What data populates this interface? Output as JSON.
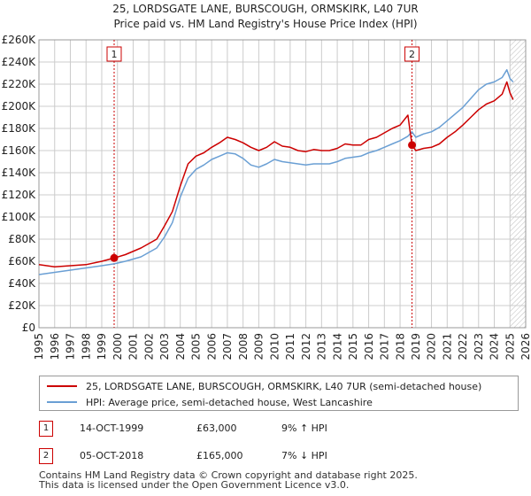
{
  "chart_data": {
    "type": "line",
    "title_line1": "25, LORDSGATE LANE, BURSCOUGH, ORMSKIRK, L40 7UR",
    "title_line2": "Price paid vs. HM Land Registry's House Price Index (HPI)",
    "ylim": [
      0,
      260000
    ],
    "xlim": [
      1995,
      2026
    ],
    "y_ticks": [
      {
        "value": 0,
        "label": "£0"
      },
      {
        "value": 20000,
        "label": "£20K"
      },
      {
        "value": 40000,
        "label": "£40K"
      },
      {
        "value": 60000,
        "label": "£60K"
      },
      {
        "value": 80000,
        "label": "£80K"
      },
      {
        "value": 100000,
        "label": "£100K"
      },
      {
        "value": 120000,
        "label": "£120K"
      },
      {
        "value": 140000,
        "label": "£140K"
      },
      {
        "value": 160000,
        "label": "£160K"
      },
      {
        "value": 180000,
        "label": "£180K"
      },
      {
        "value": 200000,
        "label": "£200K"
      },
      {
        "value": 220000,
        "label": "£220K"
      },
      {
        "value": 240000,
        "label": "£240K"
      },
      {
        "value": 260000,
        "label": "£260K"
      }
    ],
    "x_ticks": [
      "1995",
      "1996",
      "1997",
      "1998",
      "1999",
      "2000",
      "2001",
      "2002",
      "2003",
      "2004",
      "2005",
      "2006",
      "2007",
      "2008",
      "2009",
      "2010",
      "2011",
      "2012",
      "2013",
      "2014",
      "2015",
      "2016",
      "2017",
      "2018",
      "2019",
      "2020",
      "2021",
      "2022",
      "2023",
      "2024",
      "2025",
      "2026"
    ],
    "series": [
      {
        "name": "25, LORDSGATE LANE, BURSCOUGH, ORMSKIRK, L40 7UR (semi-detached house)",
        "color": "#cc0000",
        "x": [
          1995.0,
          1996.0,
          1997.0,
          1998.0,
          1999.0,
          1999.79,
          2000.5,
          2001.5,
          2002.5,
          2003.0,
          2003.5,
          2004.0,
          2004.5,
          2005.0,
          2005.5,
          2006.0,
          2006.5,
          2007.0,
          2007.5,
          2008.0,
          2008.5,
          2009.0,
          2009.5,
          2010.0,
          2010.5,
          2011.0,
          2011.5,
          2012.0,
          2012.5,
          2013.0,
          2013.5,
          2014.0,
          2014.5,
          2015.0,
          2015.5,
          2016.0,
          2016.5,
          2017.0,
          2017.5,
          2018.0,
          2018.5,
          2018.76,
          2019.0,
          2019.5,
          2020.0,
          2020.5,
          2021.0,
          2021.5,
          2022.0,
          2022.5,
          2023.0,
          2023.5,
          2024.0,
          2024.5,
          2024.8,
          2025.0,
          2025.2
        ],
        "values": [
          57000,
          55000,
          56000,
          57000,
          60000,
          63000,
          66000,
          72000,
          80000,
          92000,
          105000,
          128000,
          148000,
          155000,
          158000,
          163000,
          167000,
          172000,
          170000,
          167000,
          163000,
          160000,
          163000,
          168000,
          164000,
          163000,
          160000,
          159000,
          161000,
          160000,
          160000,
          162000,
          166000,
          165000,
          165000,
          170000,
          172000,
          176000,
          180000,
          183000,
          192000,
          165000,
          160000,
          162000,
          163000,
          166000,
          172000,
          177000,
          183000,
          190000,
          197000,
          202000,
          205000,
          211000,
          222000,
          212000,
          206000
        ]
      },
      {
        "name": "HPI: Average price, semi-detached house, West Lancashire",
        "color": "#6a9fd4",
        "x": [
          1995.0,
          1996.0,
          1997.0,
          1998.0,
          1999.0,
          1999.79,
          2000.5,
          2001.5,
          2002.5,
          2003.0,
          2003.5,
          2004.0,
          2004.5,
          2005.0,
          2005.5,
          2006.0,
          2006.5,
          2007.0,
          2007.5,
          2008.0,
          2008.5,
          2009.0,
          2009.5,
          2010.0,
          2010.5,
          2011.0,
          2011.5,
          2012.0,
          2012.5,
          2013.0,
          2013.5,
          2014.0,
          2014.5,
          2015.0,
          2015.5,
          2016.0,
          2016.5,
          2017.0,
          2017.5,
          2018.0,
          2018.5,
          2018.76,
          2019.0,
          2019.5,
          2020.0,
          2020.5,
          2021.0,
          2021.5,
          2022.0,
          2022.5,
          2023.0,
          2023.5,
          2024.0,
          2024.5,
          2024.8,
          2025.0,
          2025.2
        ],
        "values": [
          48000,
          50000,
          52000,
          54000,
          56000,
          57700,
          60000,
          64000,
          72000,
          82000,
          95000,
          118000,
          135000,
          143000,
          147000,
          152000,
          155000,
          158000,
          157000,
          153000,
          147000,
          145000,
          148000,
          152000,
          150000,
          149000,
          148000,
          147000,
          148000,
          148000,
          148000,
          150000,
          153000,
          154000,
          155000,
          158000,
          160000,
          163000,
          166000,
          169000,
          173000,
          177000,
          172000,
          175000,
          177000,
          181000,
          187000,
          193000,
          199000,
          207000,
          215000,
          220000,
          222000,
          226000,
          233000,
          225000,
          222000
        ]
      }
    ],
    "sales": [
      {
        "label": "1",
        "date": "14-OCT-1999",
        "x": 1999.79,
        "price": 63000,
        "price_label": "£63,000",
        "hpi": "9% ↑ HPI"
      },
      {
        "label": "2",
        "date": "05-OCT-2018",
        "x": 2018.76,
        "price": 165000,
        "price_label": "£165,000",
        "hpi": "7% ↓ HPI"
      }
    ],
    "future_start": 2025.0,
    "grid": true
  },
  "colors": {
    "price": "#cc0000",
    "hpi": "#6a9fd4",
    "shade": "#e6eefa",
    "grid": "#cccccc"
  },
  "footer": {
    "line1": "Contains HM Land Registry data © Crown copyright and database right 2025.",
    "line2": "This data is licensed under the Open Government Licence v3.0."
  }
}
